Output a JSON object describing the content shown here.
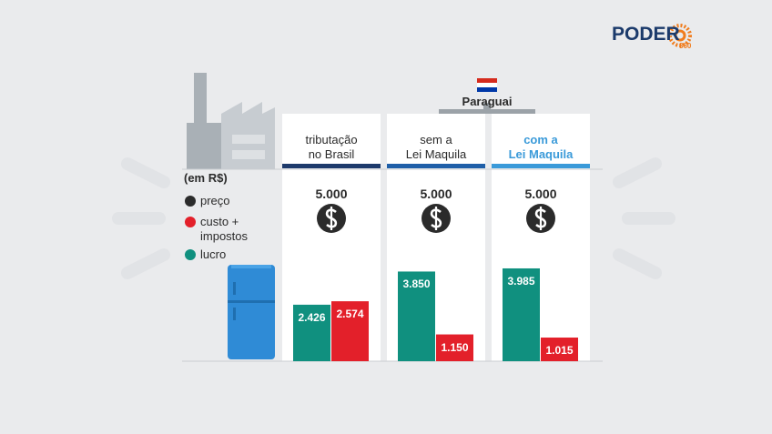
{
  "chart_data": {
    "type": "bar",
    "logo": {
      "name": "PODER",
      "number": "360"
    },
    "unit": "(em R$)",
    "group_label": "Paraguai",
    "categories": [
      "tributação\nno Brasil",
      "sem a\nLei Maquila",
      "com a\nLei Maquila"
    ],
    "header_colors": [
      "#1d3a6b",
      "#1f5fa8",
      "#3a9ad9"
    ],
    "series": [
      {
        "name": "preço",
        "color": "#2b2b2b",
        "values": [
          5000,
          5000,
          5000
        ],
        "value_labels": [
          "5.000",
          "5.000",
          "5.000"
        ]
      },
      {
        "name": "custo +\nimpostos",
        "color": "#e3202a",
        "values": [
          2574,
          1150,
          1015
        ],
        "value_labels": [
          "2.574",
          "1.150",
          "1.015"
        ]
      },
      {
        "name": "lucro",
        "color": "#10907f",
        "values": [
          2426,
          3850,
          3985
        ],
        "value_labels": [
          "2.426",
          "3.850",
          "3.985"
        ]
      }
    ]
  }
}
